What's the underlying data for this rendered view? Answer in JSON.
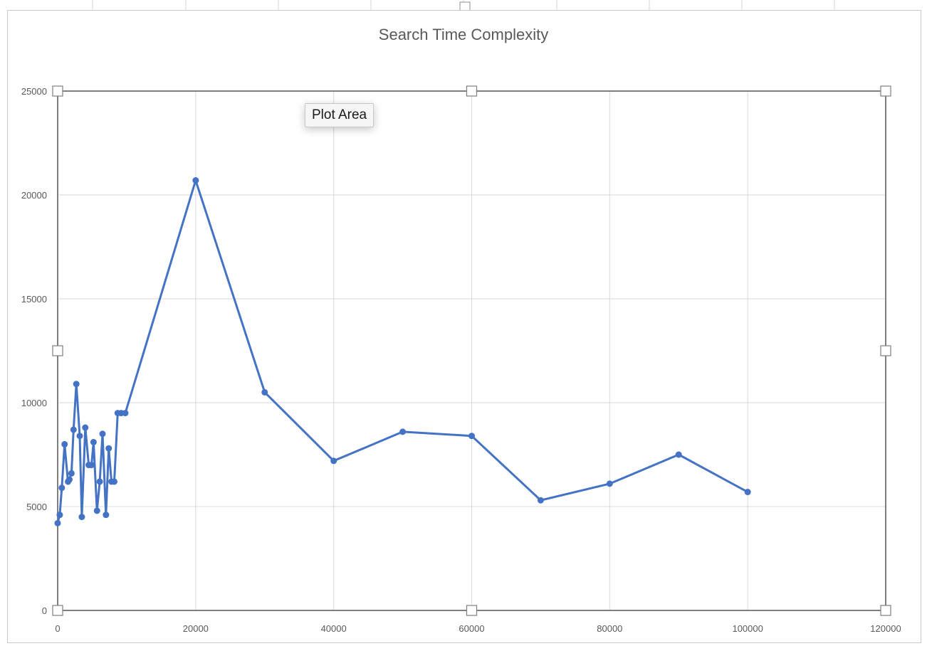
{
  "tooltip": {
    "label": "Plot Area"
  },
  "colors": {
    "series": "#4472c4",
    "grid": "#d9d9d9",
    "plot_border": "#7f7f7f",
    "text": "#595959"
  },
  "chart_data": {
    "type": "scatter",
    "title": "Search Time Complexity",
    "xlabel": "",
    "ylabel": "",
    "xlim": [
      0,
      120000
    ],
    "ylim": [
      0,
      25000
    ],
    "xticks": [
      0,
      20000,
      40000,
      60000,
      80000,
      100000,
      120000
    ],
    "yticks": [
      0,
      5000,
      10000,
      15000,
      20000,
      25000
    ],
    "grid": true,
    "legend": "none",
    "series": [
      {
        "x": [
          0,
          300,
          600,
          1000,
          1500,
          1700,
          2000,
          2300,
          2700,
          3200,
          3500,
          4000,
          4500,
          4900,
          5200,
          5700,
          6100,
          6500,
          7000,
          7400,
          7800,
          8200,
          8700,
          9200,
          9800,
          20000,
          30000,
          40000,
          50000,
          60000,
          70000,
          80000,
          90000,
          100000
        ],
        "y": [
          4200,
          4600,
          5900,
          8000,
          6200,
          6300,
          6600,
          8700,
          10900,
          8400,
          4500,
          8800,
          7000,
          7000,
          8100,
          4800,
          6200,
          8500,
          4600,
          7800,
          6200,
          6200,
          9500,
          9500,
          9500,
          20700,
          10500,
          7200,
          8600,
          8400,
          5300,
          6100,
          7500,
          5700
        ]
      }
    ]
  }
}
